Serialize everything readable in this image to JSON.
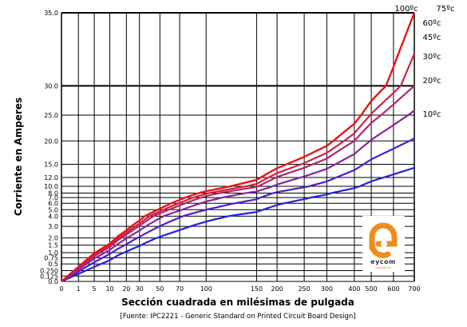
{
  "chart_data": {
    "type": "line",
    "xlabel": "Sección cuadrada en milésimas de pulgada",
    "ylabel": "Corriente en Amperes",
    "source": "[Fuente: IPC2221 - Generic Standard on Printed Circuit Board Design]",
    "x_ticks": [
      "0",
      "1",
      "5",
      "10",
      "20",
      "30",
      "50",
      "70",
      "100",
      "150",
      "200",
      "250",
      "300",
      "400",
      "500",
      "600",
      "700"
    ],
    "y_ticks": [
      "0.0",
      "0.125",
      "0.250",
      "0.5",
      "0.75",
      "1.0",
      "1.5",
      "2.0",
      "3.0",
      "4.0",
      "5.0",
      "6.0",
      "7.0",
      "8.0",
      "10.0",
      "12.0",
      "15.0",
      "20.0",
      "25.0",
      "30.0",
      "35.0"
    ],
    "ylim": [
      0,
      35
    ],
    "xlim": [
      0,
      700
    ],
    "grid": true,
    "series": [
      {
        "name": "10ºc",
        "color": "#2222dd",
        "end_value": 14.2
      },
      {
        "name": "20ºc",
        "color": "#4a1fcc",
        "end_value": 20.5
      },
      {
        "name": "30ºc",
        "color": "#8a2299",
        "end_value": 25.8
      },
      {
        "name": "45ºc",
        "color": "#b0256e",
        "end_value": 30.0
      },
      {
        "name": "60ºc",
        "color": "#cc2244",
        "end_value": 32.2
      },
      {
        "name": "75ºc",
        "color": "#e01c1c",
        "end_value": 35.0
      },
      {
        "name": "100ºc",
        "color": "#ee1111",
        "end_value": 35.0
      }
    ]
  },
  "logo": {
    "name": "eycom",
    "tagline": "electrónica",
    "color": "#f08c1a"
  }
}
